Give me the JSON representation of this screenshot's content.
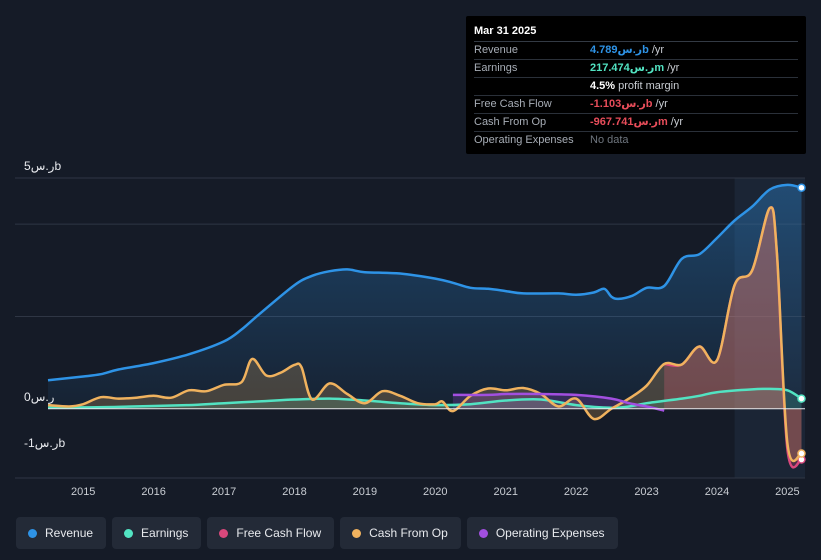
{
  "tooltip": {
    "date": "Mar 31 2025",
    "rows": [
      {
        "label": "Revenue",
        "value": "ر.س4.789b",
        "unit": "/yr",
        "color": "#2e93e6"
      },
      {
        "label": "Earnings",
        "value": "ر.س217.474m",
        "unit": "/yr",
        "color": "#52e3c2"
      },
      {
        "label": "",
        "value": "4.5%",
        "unit": "profit margin",
        "color": "#ffffff"
      },
      {
        "label": "Free Cash Flow",
        "value": "-ر.س1.103b",
        "unit": "/yr",
        "color": "#e84d5a"
      },
      {
        "label": "Cash From Op",
        "value": "-ر.س967.741m",
        "unit": "/yr",
        "color": "#e84d5a"
      },
      {
        "label": "Operating Expenses",
        "value": "No data",
        "unit": "",
        "color": "#6f767f"
      }
    ]
  },
  "legend": [
    {
      "label": "Revenue",
      "color": "#2e93e6"
    },
    {
      "label": "Earnings",
      "color": "#52e3c2"
    },
    {
      "label": "Free Cash Flow",
      "color": "#d9487c"
    },
    {
      "label": "Cash From Op",
      "color": "#f0b25e"
    },
    {
      "label": "Operating Expenses",
      "color": "#a24fe0"
    }
  ],
  "chart_data": {
    "type": "area",
    "y_unit": "SAR billions",
    "y_ticks": [
      {
        "value": 5,
        "label": "ر.س5b"
      },
      {
        "value": 0,
        "label": "ر.س0"
      },
      {
        "value": -1,
        "label": "-ر.س1b"
      }
    ],
    "ylim": [
      -1.5,
      5
    ],
    "xlim": [
      2014.5,
      2025.25
    ],
    "x_ticks": [
      "2015",
      "2016",
      "2017",
      "2018",
      "2019",
      "2020",
      "2021",
      "2022",
      "2023",
      "2024",
      "2025"
    ],
    "highlight_from": 2024.25,
    "series": [
      {
        "name": "Revenue",
        "color": "#2e93e6",
        "points": [
          [
            2014.5,
            0.62
          ],
          [
            2015.0,
            0.7
          ],
          [
            2015.25,
            0.75
          ],
          [
            2015.5,
            0.85
          ],
          [
            2016.0,
            0.99
          ],
          [
            2016.5,
            1.18
          ],
          [
            2017.0,
            1.46
          ],
          [
            2017.25,
            1.72
          ],
          [
            2017.5,
            2.05
          ],
          [
            2018.0,
            2.68
          ],
          [
            2018.25,
            2.88
          ],
          [
            2018.5,
            2.98
          ],
          [
            2018.75,
            3.02
          ],
          [
            2019.0,
            2.96
          ],
          [
            2019.5,
            2.93
          ],
          [
            2020.0,
            2.82
          ],
          [
            2020.25,
            2.73
          ],
          [
            2020.5,
            2.62
          ],
          [
            2020.75,
            2.6
          ],
          [
            2021.0,
            2.55
          ],
          [
            2021.25,
            2.5
          ],
          [
            2021.75,
            2.5
          ],
          [
            2022.0,
            2.47
          ],
          [
            2022.25,
            2.52
          ],
          [
            2022.4,
            2.6
          ],
          [
            2022.5,
            2.43
          ],
          [
            2022.6,
            2.38
          ],
          [
            2022.8,
            2.45
          ],
          [
            2023.0,
            2.62
          ],
          [
            2023.25,
            2.66
          ],
          [
            2023.5,
            3.25
          ],
          [
            2023.75,
            3.35
          ],
          [
            2024.0,
            3.7
          ],
          [
            2024.25,
            4.08
          ],
          [
            2024.5,
            4.38
          ],
          [
            2024.75,
            4.75
          ],
          [
            2025.0,
            4.85
          ],
          [
            2025.2,
            4.79
          ]
        ]
      },
      {
        "name": "Earnings",
        "color": "#52e3c2",
        "points": [
          [
            2014.5,
            0.02
          ],
          [
            2015.0,
            0.03
          ],
          [
            2015.5,
            0.04
          ],
          [
            2016.0,
            0.06
          ],
          [
            2016.5,
            0.08
          ],
          [
            2017.0,
            0.12
          ],
          [
            2017.5,
            0.16
          ],
          [
            2018.0,
            0.2
          ],
          [
            2018.5,
            0.22
          ],
          [
            2019.0,
            0.18
          ],
          [
            2019.5,
            0.12
          ],
          [
            2020.0,
            0.08
          ],
          [
            2020.5,
            0.1
          ],
          [
            2021.0,
            0.18
          ],
          [
            2021.5,
            0.2
          ],
          [
            2022.0,
            0.08
          ],
          [
            2022.5,
            0.02
          ],
          [
            2022.75,
            0.05
          ],
          [
            2023.0,
            0.12
          ],
          [
            2023.5,
            0.22
          ],
          [
            2023.75,
            0.28
          ],
          [
            2024.0,
            0.36
          ],
          [
            2024.5,
            0.42
          ],
          [
            2024.75,
            0.43
          ],
          [
            2025.0,
            0.4
          ],
          [
            2025.2,
            0.22
          ]
        ]
      },
      {
        "name": "Free Cash Flow",
        "color": "#d9487c",
        "points": [
          [
            2023.25,
            0.97
          ],
          [
            2023.5,
            0.96
          ],
          [
            2023.75,
            1.35
          ],
          [
            2024.0,
            1.05
          ],
          [
            2024.25,
            2.68
          ],
          [
            2024.5,
            3.0
          ],
          [
            2024.75,
            4.35
          ],
          [
            2024.85,
            3.4
          ],
          [
            2025.0,
            -0.88
          ],
          [
            2025.2,
            -1.1
          ]
        ]
      },
      {
        "name": "Cash From Op",
        "color": "#f0b25e",
        "points": [
          [
            2014.5,
            0.08
          ],
          [
            2014.8,
            0.05
          ],
          [
            2015.0,
            0.1
          ],
          [
            2015.25,
            0.25
          ],
          [
            2015.5,
            0.22
          ],
          [
            2015.75,
            0.24
          ],
          [
            2016.0,
            0.28
          ],
          [
            2016.25,
            0.24
          ],
          [
            2016.5,
            0.4
          ],
          [
            2016.75,
            0.38
          ],
          [
            2017.0,
            0.52
          ],
          [
            2017.25,
            0.58
          ],
          [
            2017.4,
            1.08
          ],
          [
            2017.6,
            0.72
          ],
          [
            2017.8,
            0.78
          ],
          [
            2018.0,
            0.95
          ],
          [
            2018.1,
            0.9
          ],
          [
            2018.25,
            0.2
          ],
          [
            2018.5,
            0.55
          ],
          [
            2018.75,
            0.32
          ],
          [
            2019.0,
            0.12
          ],
          [
            2019.25,
            0.38
          ],
          [
            2019.5,
            0.28
          ],
          [
            2019.75,
            0.12
          ],
          [
            2020.0,
            0.1
          ],
          [
            2020.1,
            0.16
          ],
          [
            2020.25,
            -0.05
          ],
          [
            2020.5,
            0.28
          ],
          [
            2020.75,
            0.44
          ],
          [
            2021.0,
            0.4
          ],
          [
            2021.25,
            0.45
          ],
          [
            2021.5,
            0.32
          ],
          [
            2021.75,
            0.05
          ],
          [
            2022.0,
            0.22
          ],
          [
            2022.25,
            -0.22
          ],
          [
            2022.5,
            0.0
          ],
          [
            2022.75,
            0.22
          ],
          [
            2023.0,
            0.5
          ],
          [
            2023.25,
            0.97
          ],
          [
            2023.5,
            0.96
          ],
          [
            2023.75,
            1.35
          ],
          [
            2024.0,
            1.05
          ],
          [
            2024.25,
            2.68
          ],
          [
            2024.5,
            3.0
          ],
          [
            2024.75,
            4.35
          ],
          [
            2024.85,
            3.4
          ],
          [
            2025.0,
            -0.75
          ],
          [
            2025.2,
            -0.97
          ]
        ]
      },
      {
        "name": "Operating Expenses",
        "color": "#a24fe0",
        "points": [
          [
            2020.25,
            0.3
          ],
          [
            2020.75,
            0.3
          ],
          [
            2021.0,
            0.32
          ],
          [
            2021.5,
            0.32
          ],
          [
            2022.0,
            0.3
          ],
          [
            2022.5,
            0.22
          ],
          [
            2022.75,
            0.12
          ],
          [
            2023.0,
            0.05
          ],
          [
            2023.25,
            -0.04
          ]
        ]
      }
    ]
  }
}
